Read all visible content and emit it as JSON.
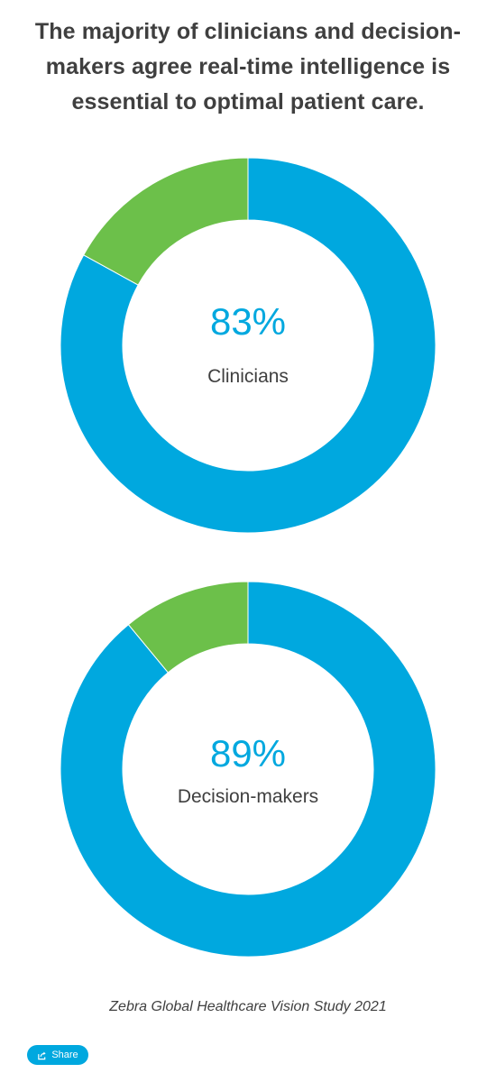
{
  "header": {
    "title": "The majority of clinicians and decision-makers agree real-time intelligence is essential to optimal patient care."
  },
  "chart_data": [
    {
      "type": "pie",
      "title": "",
      "center_value": "83%",
      "center_label": "Clinicians",
      "slices": [
        {
          "value": 83,
          "color": "#00a8df"
        },
        {
          "value": 17,
          "color": "#6cc04a"
        }
      ]
    },
    {
      "type": "pie",
      "title": "",
      "center_value": "89%",
      "center_label": "Decision-makers",
      "slices": [
        {
          "value": 89,
          "color": "#00a8df"
        },
        {
          "value": 11,
          "color": "#6cc04a"
        }
      ]
    }
  ],
  "footer": {
    "source": "Zebra Global Healthcare Vision Study 2021",
    "share_label": "Share",
    "share_icon": "share-icon"
  }
}
